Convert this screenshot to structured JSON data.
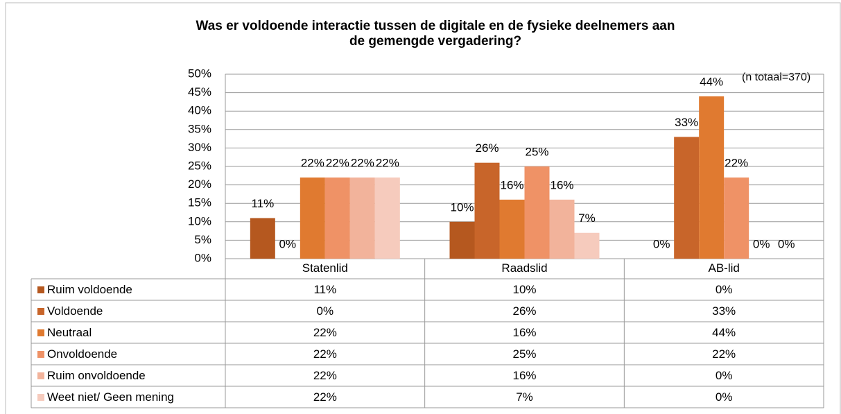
{
  "chart_data": {
    "type": "bar",
    "title": [
      "Was er voldoende interactie tussen de digitale en de fysieke deelnemers aan",
      "de gemengde vergadering?"
    ],
    "annotation": "(n totaal=370)",
    "categories": [
      "Statenlid",
      "Raadslid",
      "AB-lid"
    ],
    "series": [
      {
        "name": "Ruim voldoende",
        "color": "#b5581f",
        "values": [
          11,
          10,
          0
        ],
        "value_labels": [
          "11%",
          "10%",
          "0%"
        ]
      },
      {
        "name": "Voldoende",
        "color": "#c8652a",
        "values": [
          0,
          26,
          33
        ],
        "value_labels": [
          "0%",
          "26%",
          "33%"
        ]
      },
      {
        "name": "Neutraal",
        "color": "#e07a30",
        "values": [
          22,
          16,
          44
        ],
        "value_labels": [
          "22%",
          "16%",
          "44%"
        ]
      },
      {
        "name": "Onvoldoende",
        "color": "#ef9266",
        "values": [
          22,
          25,
          22
        ],
        "value_labels": [
          "22%",
          "25%",
          "22%"
        ]
      },
      {
        "name": "Ruim onvoldoende",
        "color": "#f2b39b",
        "values": [
          22,
          16,
          0
        ],
        "value_labels": [
          "22%",
          "16%",
          "0%"
        ]
      },
      {
        "name": "Weet niet/ Geen mening",
        "color": "#f6cbbd",
        "values": [
          22,
          7,
          0
        ],
        "value_labels": [
          "22%",
          "7%",
          "0%"
        ]
      }
    ],
    "ylim": [
      0,
      50
    ],
    "yticks": [
      {
        "value": 0,
        "label": "0%"
      },
      {
        "value": 5,
        "label": "5%"
      },
      {
        "value": 10,
        "label": "10%"
      },
      {
        "value": 15,
        "label": "15%"
      },
      {
        "value": 20,
        "label": "20%"
      },
      {
        "value": 25,
        "label": "25%"
      },
      {
        "value": 30,
        "label": "30%"
      },
      {
        "value": 35,
        "label": "35%"
      },
      {
        "value": 40,
        "label": "40%"
      },
      {
        "value": 45,
        "label": "45%"
      },
      {
        "value": 50,
        "label": "50%"
      }
    ],
    "grid": true
  }
}
